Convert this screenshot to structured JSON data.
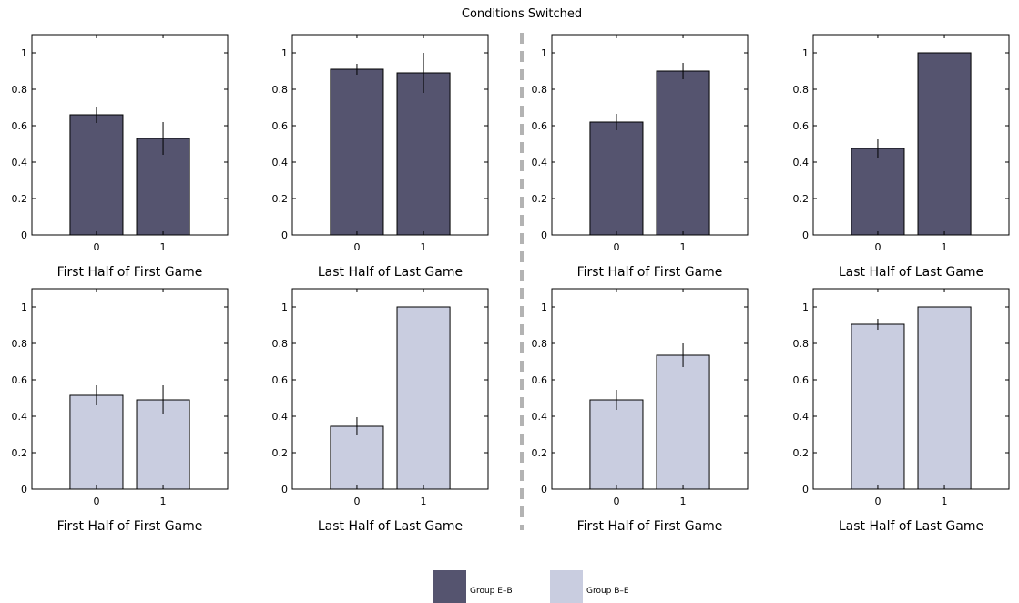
{
  "figure_title": "Conditions Switched",
  "colors": {
    "group_eb": "#55546f",
    "group_be": "#c9cde0"
  },
  "legend": [
    {
      "label": "Group E–B",
      "color": "#55546f"
    },
    {
      "label": "Group B–E",
      "color": "#c9cde0"
    }
  ],
  "chart_data": [
    {
      "type": "bar",
      "panel": "top-1",
      "group": "Group E–B",
      "categories": [
        "0",
        "1"
      ],
      "values": [
        0.66,
        0.53
      ],
      "errors": [
        0.045,
        0.09
      ],
      "xlabel": "First Half of First Game",
      "ylim": [
        0,
        1.1
      ],
      "yticks": [
        "0",
        "0.2",
        "0.4",
        "0.6",
        "0.8",
        "1"
      ]
    },
    {
      "type": "bar",
      "panel": "top-2",
      "group": "Group E–B",
      "categories": [
        "0",
        "1"
      ],
      "values": [
        0.91,
        0.89
      ],
      "errors": [
        0.03,
        0.11
      ],
      "xlabel": "Last Half of Last Game",
      "ylim": [
        0,
        1.1
      ],
      "yticks": [
        "0",
        "0.2",
        "0.4",
        "0.6",
        "0.8",
        "1"
      ]
    },
    {
      "type": "bar",
      "panel": "top-3",
      "group": "Group E–B",
      "categories": [
        "0",
        "1"
      ],
      "values": [
        0.62,
        0.9
      ],
      "errors": [
        0.045,
        0.045
      ],
      "xlabel": "First Half of First Game",
      "ylim": [
        0,
        1.1
      ],
      "yticks": [
        "0",
        "0.2",
        "0.4",
        "0.6",
        "0.8",
        "1"
      ]
    },
    {
      "type": "bar",
      "panel": "top-4",
      "group": "Group E–B",
      "categories": [
        "0",
        "1"
      ],
      "values": [
        0.475,
        1.0
      ],
      "errors": [
        0.05,
        0.0
      ],
      "xlabel": "Last Half of Last Game",
      "ylim": [
        0,
        1.1
      ],
      "yticks": [
        "0",
        "0.2",
        "0.4",
        "0.6",
        "0.8",
        "1"
      ]
    },
    {
      "type": "bar",
      "panel": "bottom-1",
      "group": "Group B–E",
      "categories": [
        "0",
        "1"
      ],
      "values": [
        0.515,
        0.49
      ],
      "errors": [
        0.055,
        0.08
      ],
      "xlabel": "First Half of First Game",
      "ylim": [
        0,
        1.1
      ],
      "yticks": [
        "0",
        "0.2",
        "0.4",
        "0.6",
        "0.8",
        "1"
      ]
    },
    {
      "type": "bar",
      "panel": "bottom-2",
      "group": "Group B–E",
      "categories": [
        "0",
        "1"
      ],
      "values": [
        0.345,
        1.0
      ],
      "errors": [
        0.05,
        0.0
      ],
      "xlabel": "Last Half of Last Game",
      "ylim": [
        0,
        1.1
      ],
      "yticks": [
        "0",
        "0.2",
        "0.4",
        "0.6",
        "0.8",
        "1"
      ]
    },
    {
      "type": "bar",
      "panel": "bottom-3",
      "group": "Group B–E",
      "categories": [
        "0",
        "1"
      ],
      "values": [
        0.49,
        0.735
      ],
      "errors": [
        0.055,
        0.065
      ],
      "xlabel": "First Half of First Game",
      "ylim": [
        0,
        1.1
      ],
      "yticks": [
        "0",
        "0.2",
        "0.4",
        "0.6",
        "0.8",
        "1"
      ]
    },
    {
      "type": "bar",
      "panel": "bottom-4",
      "group": "Group B–E",
      "categories": [
        "0",
        "1"
      ],
      "values": [
        0.905,
        1.0
      ],
      "errors": [
        0.03,
        0.0
      ],
      "xlabel": "Last Half of Last Game",
      "ylim": [
        0,
        1.1
      ],
      "yticks": [
        "0",
        "0.2",
        "0.4",
        "0.6",
        "0.8",
        "1"
      ]
    }
  ]
}
